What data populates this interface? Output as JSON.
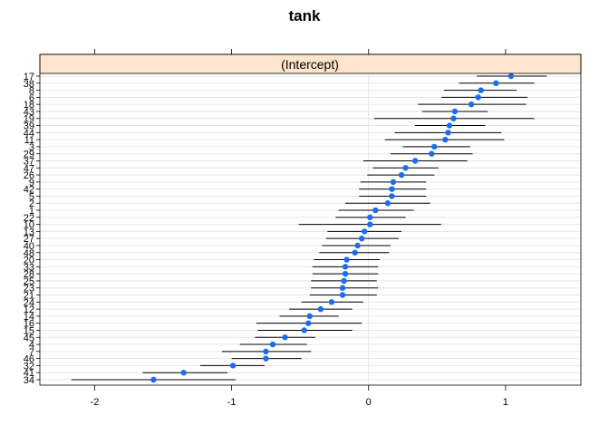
{
  "chart_data": {
    "type": "scatter",
    "title": "tank",
    "panel_label": "(Intercept)",
    "xlim": [
      -2.4,
      1.55
    ],
    "x_ticks": [
      -2,
      -1,
      0,
      1
    ],
    "x_tick_labels": [
      "-2",
      "-1",
      "0",
      "1"
    ],
    "grid": true,
    "colors": {
      "point": "#1a6df2",
      "interval": "#000000",
      "strip": "#ffe5cc",
      "grid": "#e6e6e6",
      "zero_line": "#e6e6e6"
    },
    "categories": [
      "17",
      "38",
      "8",
      "6",
      "18",
      "43",
      "19",
      "39",
      "44",
      "11",
      "3",
      "29",
      "37",
      "47",
      "26",
      "9",
      "42",
      "5",
      "2",
      "1",
      "22",
      "10",
      "13",
      "27",
      "40",
      "48",
      "20",
      "33",
      "28",
      "25",
      "23",
      "21",
      "24",
      "12",
      "14",
      "16",
      "15",
      "45",
      "4",
      "7",
      "46",
      "32",
      "41",
      "34"
    ],
    "values": [
      1.04,
      0.93,
      0.82,
      0.8,
      0.75,
      0.63,
      0.62,
      0.59,
      0.58,
      0.56,
      0.48,
      0.46,
      0.34,
      0.27,
      0.24,
      0.18,
      0.17,
      0.17,
      0.14,
      0.05,
      0.01,
      0.01,
      -0.03,
      -0.05,
      -0.08,
      -0.1,
      -0.16,
      -0.17,
      -0.17,
      -0.18,
      -0.19,
      -0.19,
      -0.27,
      -0.35,
      -0.43,
      -0.44,
      -0.47,
      -0.61,
      -0.7,
      -0.75,
      -0.75,
      -0.99,
      -1.35,
      -1.57
    ],
    "lower": [
      0.79,
      0.66,
      0.55,
      0.53,
      0.36,
      0.39,
      0.04,
      0.34,
      0.19,
      0.12,
      0.25,
      0.16,
      -0.04,
      0.03,
      -0.01,
      -0.06,
      -0.07,
      -0.07,
      -0.17,
      -0.22,
      -0.24,
      -0.51,
      -0.3,
      -0.31,
      -0.34,
      -0.36,
      -0.4,
      -0.41,
      -0.41,
      -0.42,
      -0.42,
      -0.43,
      -0.49,
      -0.58,
      -0.65,
      -0.82,
      -0.81,
      -0.83,
      -0.94,
      -1.07,
      -1.0,
      -1.23,
      -1.65,
      -2.17
    ],
    "upper": [
      1.3,
      1.21,
      1.08,
      1.16,
      1.15,
      0.87,
      1.21,
      0.85,
      0.97,
      0.99,
      0.74,
      0.76,
      0.72,
      0.51,
      0.48,
      0.42,
      0.42,
      0.42,
      0.45,
      0.33,
      0.27,
      0.53,
      0.24,
      0.22,
      0.16,
      0.15,
      0.08,
      0.07,
      0.07,
      0.06,
      0.07,
      0.06,
      -0.04,
      -0.12,
      -0.22,
      -0.05,
      -0.12,
      -0.39,
      -0.45,
      -0.42,
      -0.49,
      -0.76,
      -1.03,
      -0.97
    ]
  }
}
